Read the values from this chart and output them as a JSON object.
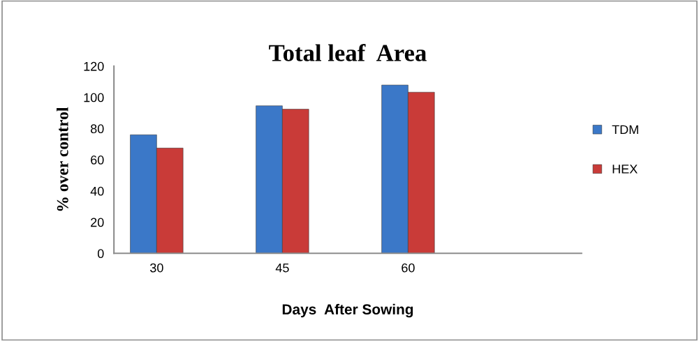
{
  "chart_data": {
    "type": "bar",
    "title": "Total leaf  Area",
    "xlabel": "Days  After Sowing",
    "ylabel": "% over control",
    "categories": [
      "30",
      "45",
      "60"
    ],
    "series": [
      {
        "name": "TDM",
        "color": "#3b78c8",
        "values": [
          76,
          94.6,
          107.9
        ]
      },
      {
        "name": "HEX",
        "color": "#c93b38",
        "values": [
          67.5,
          92.4,
          103.3
        ]
      }
    ],
    "ylim": [
      0,
      120
    ],
    "yticks": [
      0,
      20,
      40,
      60,
      80,
      100,
      120
    ],
    "grid": false,
    "legend": "right"
  }
}
